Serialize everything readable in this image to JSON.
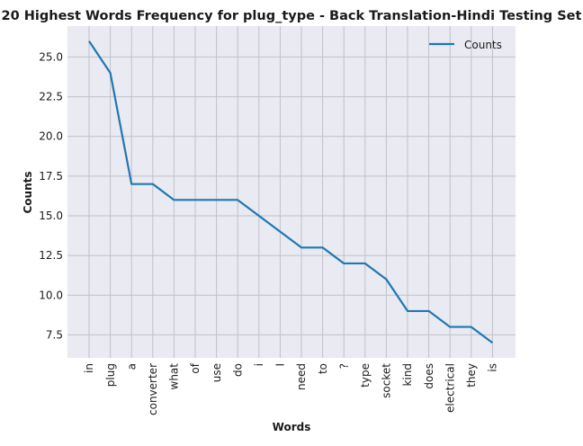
{
  "chart_data": {
    "type": "line",
    "title": "20 Highest Words Frequency for plug_type - Back Translation-Hindi Testing Set",
    "xlabel": "Words",
    "ylabel": "Counts",
    "categories": [
      "in",
      "plug",
      "a",
      "converter",
      "what",
      "of",
      "use",
      "do",
      "i",
      "I",
      "need",
      "to",
      "?",
      "type",
      "socket",
      "kind",
      "does",
      "electrical",
      "they",
      "is"
    ],
    "series": [
      {
        "name": "Counts",
        "color": "#1f77b4",
        "values": [
          26,
          24,
          17,
          17,
          16,
          16,
          16,
          16,
          15,
          14,
          13,
          13,
          12,
          12,
          11,
          9,
          9,
          8,
          8,
          7
        ]
      }
    ],
    "ylim": [
      6.05,
      26.95
    ],
    "yticks": [
      "7.5",
      "10.0",
      "12.5",
      "15.0",
      "17.5",
      "20.0",
      "22.5",
      "25.0"
    ],
    "grid": true,
    "legend_position": "top-right",
    "plot_background": "#eaeaf2",
    "grid_color": "#c0c0c8"
  }
}
